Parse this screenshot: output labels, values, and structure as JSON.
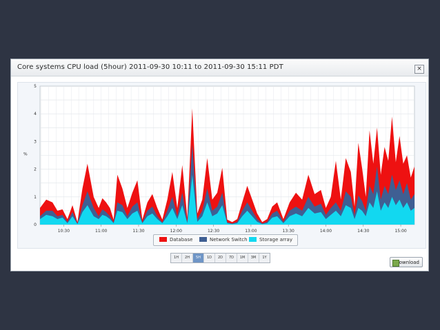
{
  "window": {
    "title": "Core systems CPU load (5hour) 2011-09-30 10:11 to 2011-09-30 15:11 PDT",
    "close_label": "×"
  },
  "legend": [
    {
      "name": "Database",
      "color": "#ee1111"
    },
    {
      "name": "Network Switch",
      "color": "#3f5f93"
    },
    {
      "name": "Storage array",
      "color": "#12d8f0"
    }
  ],
  "range_buttons": [
    "1H",
    "2H",
    "5H",
    "1D",
    "2D",
    "7D",
    "1M",
    "3M",
    "1Y"
  ],
  "active_range": "5H",
  "download_label": "Download",
  "chart_data": {
    "type": "area",
    "stacked": true,
    "title": "",
    "ylabel": "%",
    "xlabel": "",
    "ylim": [
      0,
      5
    ],
    "yticks": [
      0,
      1,
      2,
      3,
      4,
      5
    ],
    "x_ticks": [
      "10:30",
      "11:00",
      "11:30",
      "12:00",
      "12:30",
      "13:00",
      "13:30",
      "14:00",
      "14:30",
      "15:00"
    ],
    "x_tick_minutes": [
      19,
      49,
      79,
      109,
      139,
      169,
      199,
      229,
      259,
      289
    ],
    "x_range_minutes": [
      0,
      300
    ],
    "grid": true,
    "legend_position": "bottom",
    "x_minutes": [
      0,
      5,
      10,
      14,
      18,
      22,
      26,
      30,
      34,
      38,
      43,
      47,
      50,
      53,
      56,
      59,
      62,
      66,
      70,
      74,
      78,
      82,
      86,
      90,
      94,
      98,
      102,
      106,
      110,
      114,
      118,
      122,
      126,
      130,
      134,
      138,
      142,
      146,
      150,
      154,
      158,
      162,
      166,
      170,
      174,
      178,
      182,
      186,
      190,
      195,
      200,
      205,
      210,
      215,
      220,
      225,
      229,
      233,
      237,
      241,
      245,
      249,
      252,
      255,
      258,
      261,
      264,
      267,
      270,
      273,
      276,
      279,
      282,
      285,
      288,
      291,
      294,
      297,
      300
    ],
    "series": [
      {
        "name": "Storage array",
        "values": [
          0.2,
          0.35,
          0.3,
          0.2,
          0.25,
          0.05,
          0.3,
          0.02,
          0.45,
          0.7,
          0.3,
          0.2,
          0.35,
          0.3,
          0.2,
          0.05,
          0.5,
          0.45,
          0.2,
          0.4,
          0.5,
          0.05,
          0.3,
          0.4,
          0.2,
          0.05,
          0.3,
          0.6,
          0.2,
          0.7,
          0.05,
          1.8,
          0.1,
          0.3,
          0.8,
          0.3,
          0.4,
          0.7,
          0.05,
          0.02,
          0.05,
          0.3,
          0.5,
          0.3,
          0.1,
          0.02,
          0.05,
          0.25,
          0.3,
          0.05,
          0.3,
          0.4,
          0.3,
          0.6,
          0.4,
          0.45,
          0.2,
          0.35,
          0.5,
          0.3,
          0.7,
          0.6,
          0.2,
          0.6,
          0.5,
          0.3,
          0.8,
          0.6,
          1.2,
          0.5,
          0.8,
          0.6,
          1.0,
          0.7,
          0.9,
          0.6,
          0.8,
          0.5,
          0.6
        ]
      },
      {
        "name": "Network Switch",
        "values": [
          0.1,
          0.15,
          0.2,
          0.1,
          0.1,
          0.05,
          0.15,
          0.02,
          0.25,
          0.5,
          0.3,
          0.1,
          0.2,
          0.15,
          0.1,
          0.03,
          0.3,
          0.25,
          0.1,
          0.25,
          0.3,
          0.03,
          0.2,
          0.25,
          0.1,
          0.03,
          0.2,
          0.4,
          0.1,
          0.45,
          0.05,
          1.1,
          0.1,
          0.2,
          0.5,
          0.2,
          0.25,
          0.45,
          0.03,
          0.02,
          0.05,
          0.2,
          0.3,
          0.2,
          0.1,
          0.02,
          0.05,
          0.15,
          0.2,
          0.05,
          0.2,
          0.25,
          0.2,
          0.4,
          0.25,
          0.3,
          0.15,
          0.25,
          0.3,
          0.2,
          0.5,
          0.4,
          0.15,
          0.45,
          0.35,
          0.2,
          0.6,
          0.5,
          0.9,
          0.4,
          0.6,
          0.5,
          0.8,
          0.55,
          0.7,
          0.5,
          0.7,
          0.4,
          0.5
        ]
      },
      {
        "name": "Database",
        "values": [
          0.3,
          0.4,
          0.3,
          0.2,
          0.2,
          0.1,
          0.25,
          0.05,
          0.6,
          1.0,
          0.4,
          0.3,
          0.4,
          0.35,
          0.3,
          0.1,
          1.0,
          0.6,
          0.3,
          0.5,
          0.8,
          0.1,
          0.3,
          0.45,
          0.3,
          0.1,
          0.4,
          0.9,
          0.3,
          1.0,
          0.15,
          1.3,
          0.2,
          0.4,
          1.1,
          0.4,
          0.5,
          0.9,
          0.1,
          0.05,
          0.1,
          0.3,
          0.6,
          0.4,
          0.2,
          0.05,
          0.1,
          0.25,
          0.3,
          0.1,
          0.3,
          0.5,
          0.4,
          0.8,
          0.45,
          0.5,
          0.25,
          0.4,
          1.5,
          0.4,
          1.2,
          0.9,
          0.3,
          1.9,
          1.2,
          0.5,
          2.0,
          1.1,
          1.4,
          0.9,
          1.4,
          1.2,
          2.1,
          1.0,
          1.6,
          1.1,
          1.0,
          0.8,
          1.0
        ]
      }
    ]
  }
}
